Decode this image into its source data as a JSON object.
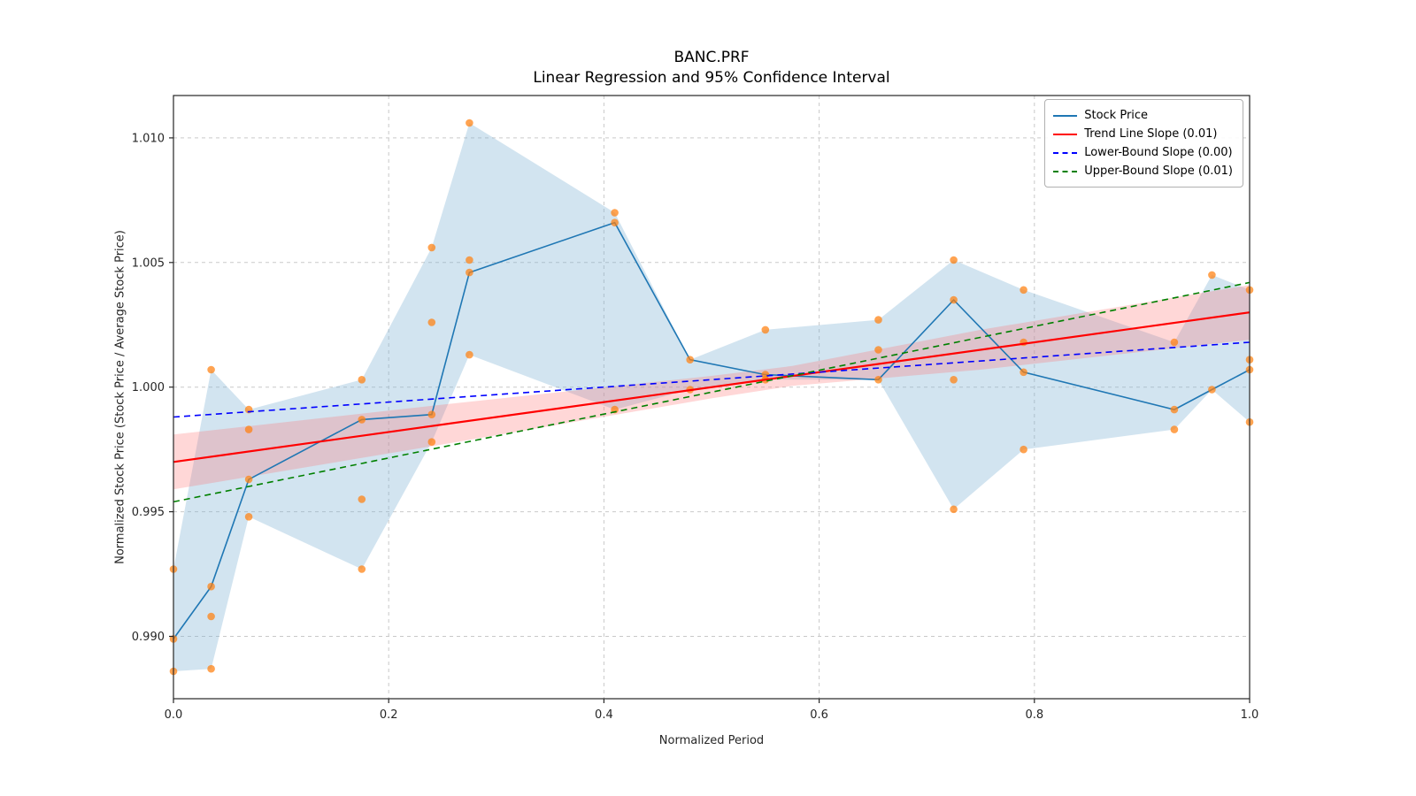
{
  "figure": {
    "title": "BANC.PRF",
    "subtitle": "Linear Regression and 95% Confidence Interval"
  },
  "chart_data": {
    "type": "line",
    "title": "BANC.PRF",
    "subtitle": "Linear Regression and 95% Confidence Interval",
    "xlabel": "Normalized Period",
    "ylabel": "Normalized Stock Price (Stock Price / Average Stock Price)",
    "xlim": [
      0.0,
      1.0
    ],
    "ylim": [
      0.9875,
      1.0117
    ],
    "xticks": [
      0.0,
      0.2,
      0.4,
      0.6,
      0.8,
      1.0
    ],
    "xtick_labels": [
      "0.0",
      "0.2",
      "0.4",
      "0.6",
      "0.8",
      "1.0"
    ],
    "yticks": [
      0.99,
      0.995,
      1.0,
      1.005,
      1.01
    ],
    "ytick_labels": [
      "0.990",
      "0.995",
      "1.000",
      "1.005",
      "1.010"
    ],
    "grid": true,
    "legend_position": "upper right",
    "colors": {
      "stock": "#1f77b4",
      "scatter": "#ff7f0e",
      "trend": "#ff0000",
      "lower_bound": "#0000ff",
      "upper_bound": "#008000",
      "stock_band": "#7fb3d3",
      "trend_band": "#ff7070",
      "grid": "#c9c9c9",
      "spine": "#262626"
    },
    "stock_line": {
      "x": [
        0.0,
        0.035,
        0.07,
        0.175,
        0.24,
        0.275,
        0.41,
        0.48,
        0.55,
        0.655,
        0.725,
        0.79,
        0.93,
        0.965,
        1.0
      ],
      "y": [
        0.9899,
        0.992,
        0.9963,
        0.9987,
        0.9989,
        1.0046,
        1.0066,
        1.0011,
        1.0005,
        1.0003,
        1.0035,
        1.0006,
        0.9991,
        0.9999,
        1.0007
      ]
    },
    "confidence_band_stock": {
      "x": [
        0.0,
        0.035,
        0.07,
        0.175,
        0.24,
        0.275,
        0.41,
        0.48,
        0.55,
        0.655,
        0.725,
        0.79,
        0.93,
        0.965,
        1.0
      ],
      "upper": [
        0.9927,
        1.0007,
        0.9991,
        1.0003,
        1.0056,
        1.0106,
        1.007,
        1.0011,
        1.0023,
        1.0027,
        1.0051,
        1.0039,
        1.0018,
        1.0045,
        1.0039
      ],
      "lower": [
        0.9886,
        0.9887,
        0.9948,
        0.9927,
        0.9978,
        1.0013,
        0.9991,
        0.9999,
        1.0003,
        1.0003,
        0.9951,
        0.9975,
        0.9983,
        0.9999,
        0.9986
      ]
    },
    "trend_line": {
      "x": [
        0.0,
        1.0
      ],
      "y": [
        0.997,
        1.003
      ],
      "slope": 0.01
    },
    "trend_band": {
      "x": [
        0.0,
        0.25,
        0.5,
        0.575,
        0.75,
        1.0
      ],
      "upper": [
        0.9981,
        0.9993,
        1.00045,
        1.00085,
        1.0023,
        1.0041
      ],
      "lower": [
        0.9959,
        0.9977,
        0.99955,
        1.00005,
        1.0007,
        1.0019
      ]
    },
    "lower_bound_line": {
      "x": [
        0.0,
        1.0
      ],
      "y": [
        0.9988,
        1.0018
      ],
      "slope": 0.0
    },
    "upper_bound_line": {
      "x": [
        0.0,
        1.0
      ],
      "y": [
        0.9954,
        1.0042
      ],
      "slope": 0.01
    },
    "scatter": [
      [
        0.0,
        0.9927
      ],
      [
        0.0,
        0.9899
      ],
      [
        0.0,
        0.9886
      ],
      [
        0.035,
        1.0007
      ],
      [
        0.035,
        0.992
      ],
      [
        0.035,
        0.9908
      ],
      [
        0.035,
        0.9887
      ],
      [
        0.07,
        0.9991
      ],
      [
        0.07,
        0.9983
      ],
      [
        0.07,
        0.9963
      ],
      [
        0.07,
        0.9948
      ],
      [
        0.175,
        1.0003
      ],
      [
        0.175,
        0.9987
      ],
      [
        0.175,
        0.9955
      ],
      [
        0.175,
        0.9927
      ],
      [
        0.24,
        1.0056
      ],
      [
        0.24,
        1.0026
      ],
      [
        0.24,
        0.9989
      ],
      [
        0.24,
        0.9978
      ],
      [
        0.275,
        1.0106
      ],
      [
        0.275,
        1.0051
      ],
      [
        0.275,
        1.0046
      ],
      [
        0.275,
        1.0013
      ],
      [
        0.41,
        1.007
      ],
      [
        0.41,
        1.0066
      ],
      [
        0.41,
        0.9991
      ],
      [
        0.48,
        1.0011
      ],
      [
        0.48,
        0.9999
      ],
      [
        0.55,
        1.0023
      ],
      [
        0.55,
        1.0005
      ],
      [
        0.55,
        1.0003
      ],
      [
        0.655,
        1.0027
      ],
      [
        0.655,
        1.0015
      ],
      [
        0.655,
        1.0003
      ],
      [
        0.725,
        1.0051
      ],
      [
        0.725,
        1.0035
      ],
      [
        0.725,
        1.0003
      ],
      [
        0.725,
        0.9951
      ],
      [
        0.79,
        1.0039
      ],
      [
        0.79,
        1.0018
      ],
      [
        0.79,
        1.0006
      ],
      [
        0.79,
        0.9975
      ],
      [
        0.93,
        1.0018
      ],
      [
        0.93,
        0.9991
      ],
      [
        0.93,
        0.9983
      ],
      [
        0.965,
        1.0045
      ],
      [
        0.965,
        0.9999
      ],
      [
        1.0,
        1.0039
      ],
      [
        1.0,
        1.0011
      ],
      [
        1.0,
        1.0007
      ],
      [
        1.0,
        0.9986
      ]
    ],
    "legend": [
      {
        "label": "Stock Price",
        "color": "#1f77b4",
        "dash": false
      },
      {
        "label": "Trend Line Slope (0.01)",
        "color": "#ff0000",
        "dash": false
      },
      {
        "label": "Lower-Bound Slope (0.00)",
        "color": "#0000ff",
        "dash": true
      },
      {
        "label": "Upper-Bound Slope (0.01)",
        "color": "#008000",
        "dash": true
      }
    ]
  }
}
